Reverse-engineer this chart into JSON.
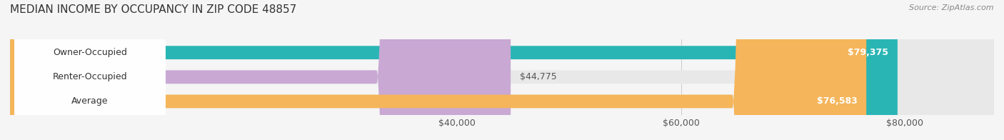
{
  "title": "MEDIAN INCOME BY OCCUPANCY IN ZIP CODE 48857",
  "source": "Source: ZipAtlas.com",
  "categories": [
    "Owner-Occupied",
    "Renter-Occupied",
    "Average"
  ],
  "values": [
    79375,
    44775,
    76583
  ],
  "bar_colors": [
    "#2ab5b5",
    "#c9a8d4",
    "#f5b55a"
  ],
  "bar_labels": [
    "$79,375",
    "$44,775",
    "$76,583"
  ],
  "label_inside": [
    true,
    false,
    true
  ],
  "x_ticks": [
    40000,
    60000,
    80000
  ],
  "x_tick_labels": [
    "$40,000",
    "$60,000",
    "$80,000"
  ],
  "xlim": [
    0,
    88000
  ],
  "background_color": "#f5f5f5",
  "bar_bg_color": "#e8e8e8",
  "title_fontsize": 11,
  "source_fontsize": 8,
  "label_fontsize": 9,
  "tick_fontsize": 9
}
